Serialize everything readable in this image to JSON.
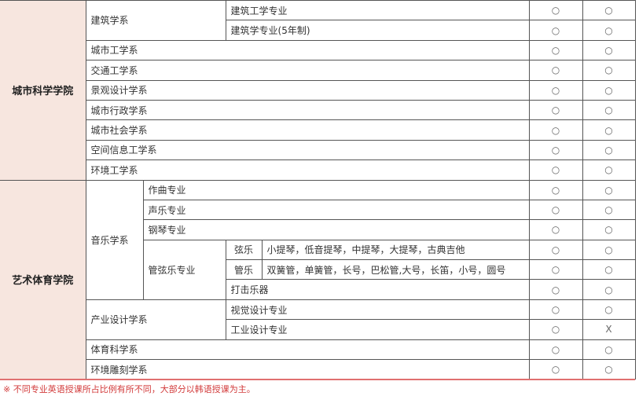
{
  "colleges": [
    {
      "name": "城市科学学院",
      "rows": [
        {
          "dept": "建筑学系",
          "major": "建筑工学专业",
          "a": "○",
          "b": "○"
        },
        {
          "major": "建筑学专业(5年制)",
          "a": "○",
          "b": "○"
        },
        {
          "dept": "城市工学系",
          "a": "○",
          "b": "○"
        },
        {
          "dept": "交通工学系",
          "a": "○",
          "b": "○"
        },
        {
          "dept": "景观设计学系",
          "a": "○",
          "b": "○"
        },
        {
          "dept": "城市行政学系",
          "a": "○",
          "b": "○"
        },
        {
          "dept": "城市社会学系",
          "a": "○",
          "b": "○"
        },
        {
          "dept": "空间信息工学系",
          "a": "○",
          "b": "○"
        },
        {
          "dept": "环境工学系",
          "a": "○",
          "b": "○"
        }
      ]
    },
    {
      "name": "艺术体育学院",
      "rows": [
        {
          "dept": "音乐学系",
          "major": "作曲专业",
          "a": "○",
          "b": "○"
        },
        {
          "major": "声乐专业",
          "a": "○",
          "b": "○"
        },
        {
          "major": "钢琴专业",
          "a": "○",
          "b": "○"
        },
        {
          "major": "管弦乐专业",
          "sub": "弦乐",
          "instruments": "小提琴，低音提琴，中提琴，大提琴，古典吉他",
          "a": "○",
          "b": "○"
        },
        {
          "sub": "管乐",
          "instruments": "双簧管，单簧管，长号，巴松管,大号，长笛，小号，圆号",
          "a": "○",
          "b": "○"
        },
        {
          "sub": "打击乐器",
          "a": "○",
          "b": "○"
        },
        {
          "dept": "产业设计学系",
          "major": "视觉设计专业",
          "a": "○",
          "b": "○"
        },
        {
          "major": "工业设计专业",
          "a": "○",
          "b": "X"
        },
        {
          "dept": "体育科学系",
          "a": "○",
          "b": "○"
        },
        {
          "dept": "环境雕刻学系",
          "a": "○",
          "b": "○"
        }
      ]
    }
  ],
  "note": "※ 不同专业英语授课所占比例有所不同，大部分以韩语授课为主。"
}
